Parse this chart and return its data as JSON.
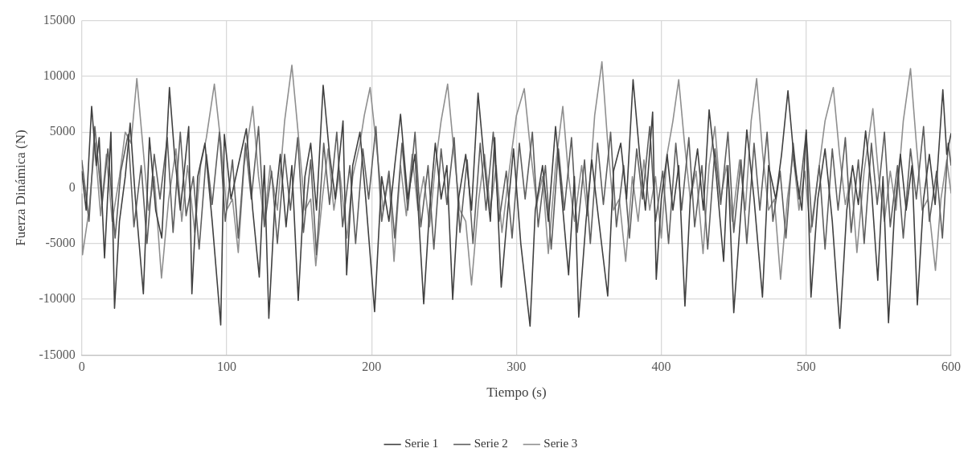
{
  "chart_data": {
    "type": "line",
    "xlabel": "Tiempo (s)",
    "ylabel": "Fuerza Dinámica (N)",
    "xlim": [
      0,
      600
    ],
    "xticks": [
      0,
      100,
      200,
      300,
      400,
      500,
      600
    ],
    "ylim": [
      -15000,
      15000
    ],
    "yticks": [
      -15000,
      -10000,
      -5000,
      0,
      5000,
      10000,
      15000
    ],
    "grid": true,
    "legend": "bottom",
    "marker": "none",
    "line_style": "solid",
    "series": [
      {
        "name": "Serie 1",
        "color": "#404040",
        "x": [
          0,
          3,
          6.8,
          10,
          12,
          15.7,
          20.1,
          22.6,
          26,
          30,
          33.4,
          37,
          42.5,
          46.7,
          51,
          55.2,
          60.5,
          64,
          68,
          73.8,
          76,
          80,
          85,
          90,
          95.9,
          98.4,
          103,
          108,
          113.6,
          118,
          122.5,
          126,
          129.1,
          133,
          137,
          141,
          145,
          149.4,
          154,
          158,
          162,
          166.6,
          171,
          175,
          180.3,
          182.8,
          187,
          192,
          196,
          202.1,
          207,
          212,
          216,
          220,
          225,
          230,
          236,
          240,
          244,
          248,
          252,
          256,
          260,
          265,
          269,
          273.5,
          278,
          282,
          285,
          289.5,
          294,
          298,
          303,
          309.4,
          313,
          318,
          322,
          327,
          336,
          340,
          343,
          348,
          352,
          356,
          363,
          367,
          372,
          376,
          380.5,
          385,
          389,
          394,
          396.5,
          400,
          404,
          408,
          412,
          416.3,
          420,
          425,
          429,
          433,
          438,
          443,
          446,
          450,
          455,
          459,
          464,
          469.8,
          474,
          479,
          483,
          487.4,
          492,
          497,
          500,
          503.3,
          508,
          513,
          518,
          523.2,
          528,
          532,
          536,
          541,
          545,
          549.4,
          553,
          556.8,
          561,
          565,
          569,
          573,
          576.7,
          581,
          585,
          589,
          594.3,
          597,
          600
        ],
        "values": [
          1500,
          -2000,
          7300,
          2000,
          4500,
          -6300,
          5000,
          -10800,
          -3000,
          1000,
          5800,
          -1000,
          -9500,
          4500,
          -2000,
          -4500,
          9000,
          3000,
          -2000,
          5500,
          -9500,
          1000,
          4000,
          -3000,
          -12300,
          4800,
          -1000,
          2000,
          5300,
          -2000,
          -8000,
          2000,
          -11700,
          -2000,
          3000,
          -3500,
          2000,
          -10100,
          1000,
          4000,
          -2000,
          9200,
          3000,
          -1000,
          6000,
          -7800,
          2000,
          5000,
          -1000,
          -11100,
          1000,
          -3000,
          2000,
          6600,
          -1000,
          3000,
          -10400,
          -2000,
          4000,
          -1000,
          2000,
          -10000,
          -1000,
          3000,
          -2000,
          8500,
          2000,
          -3000,
          4500,
          -8900,
          -2000,
          3500,
          -5000,
          -12400,
          -2000,
          2000,
          -3000,
          5500,
          -7800,
          1000,
          -11600,
          -3000,
          2500,
          -2000,
          -9700,
          1500,
          4000,
          -1000,
          9700,
          3000,
          -2000,
          6800,
          -8200,
          -1000,
          3000,
          -2000,
          2000,
          -10600,
          -1000,
          3500,
          -2000,
          7000,
          1000,
          -6600,
          2000,
          -11200,
          -2000,
          5200,
          -1000,
          -9800,
          2000,
          -1000,
          3000,
          8700,
          2000,
          -2000,
          5200,
          -9800,
          -1000,
          3500,
          -3000,
          -12600,
          -2000,
          2000,
          -1500,
          5100,
          0,
          -8300,
          1000,
          -12100,
          -2000,
          3000,
          -2000,
          2000,
          -10500,
          -1000,
          3000,
          -1500,
          8800,
          3000,
          4900
        ]
      },
      {
        "name": "Serie 2",
        "color": "#5f5f5f",
        "x": [
          0,
          5,
          9,
          14,
          18,
          23,
          27,
          32,
          36,
          41,
          45,
          50,
          54,
          59,
          63,
          68,
          72,
          77,
          81,
          86,
          90,
          95,
          99,
          104,
          108,
          113,
          117,
          122,
          126,
          131,
          135,
          140,
          144,
          149,
          153,
          158,
          162,
          167,
          171,
          176,
          180,
          185,
          189,
          194,
          198,
          203,
          207,
          212,
          216,
          221,
          225,
          230,
          234,
          239,
          243,
          248,
          252,
          257,
          261,
          266,
          270,
          275,
          279,
          284,
          288,
          293,
          297,
          302,
          306,
          311,
          315,
          320,
          324,
          329,
          333,
          338,
          342,
          347,
          351,
          356,
          360,
          365,
          369,
          374,
          378,
          383,
          387,
          392,
          396,
          401,
          405,
          410,
          414,
          419,
          423,
          428,
          432,
          437,
          441,
          446,
          450,
          455,
          459,
          464,
          468,
          473,
          477,
          482,
          486,
          491,
          495,
          500,
          504,
          509,
          513,
          518,
          522,
          527,
          531,
          536,
          540,
          545,
          549,
          554,
          558,
          563,
          567,
          572,
          576,
          581,
          585,
          590,
          594,
          598,
          600
        ],
        "values": [
          2500,
          -3000,
          5500,
          -1500,
          3500,
          -4500,
          1500,
          4800,
          -3500,
          2000,
          -5000,
          3000,
          -1000,
          4500,
          -4000,
          5000,
          -2500,
          1000,
          -5500,
          3000,
          -1500,
          5000,
          -3000,
          2500,
          -4500,
          4000,
          -1000,
          5500,
          -3500,
          1500,
          -5000,
          3000,
          -2000,
          4500,
          -4000,
          2500,
          -6000,
          4000,
          -1500,
          5000,
          -3500,
          2000,
          -5000,
          3500,
          -1000,
          5500,
          -3000,
          1500,
          -4500,
          4000,
          -2000,
          5000,
          -3500,
          2000,
          -5500,
          3500,
          -1500,
          4500,
          -4000,
          2500,
          -5000,
          4000,
          -2000,
          5000,
          -3000,
          1500,
          -4500,
          4000,
          -1000,
          5000,
          -3500,
          2000,
          -5500,
          3500,
          -2000,
          4500,
          -4000,
          2500,
          -5000,
          4000,
          -1500,
          5000,
          -3500,
          2000,
          -4500,
          3500,
          -1000,
          5500,
          -3000,
          1500,
          -5000,
          4000,
          -2000,
          4500,
          -3500,
          2000,
          -5500,
          3500,
          -1500,
          5000,
          -4000,
          2500,
          -5000,
          4000,
          -2000,
          5000,
          -3000,
          1500,
          -4500,
          4000,
          -1000,
          5000,
          -3500,
          2000,
          -5500,
          3500,
          -2000,
          4500,
          -4000,
          2500,
          -5000,
          4000,
          -1500,
          5000,
          -3500,
          2000,
          -4500,
          3500,
          -1000,
          5500,
          -3000,
          1500,
          -4500,
          4000,
          2000
        ]
      },
      {
        "name": "Serie 3",
        "color": "#8f8f8f",
        "x": [
          0,
          0.5,
          5,
          9,
          13,
          17,
          21,
          26,
          30,
          34,
          38,
          42,
          46,
          50,
          55,
          60,
          65,
          69,
          73,
          78,
          82,
          86,
          91.5,
          96,
          100,
          104,
          108,
          112,
          118,
          122,
          126,
          130,
          135,
          140,
          145,
          150,
          154,
          158,
          161.5,
          166,
          170,
          174,
          178,
          183,
          187,
          192,
          195,
          199,
          204,
          208,
          212,
          215.5,
          220,
          224,
          228,
          232,
          236,
          240,
          244,
          248,
          252.5,
          257,
          261,
          265,
          269,
          274,
          278,
          282,
          286,
          290,
          295,
          300,
          305.4,
          310,
          314,
          318,
          322,
          327,
          332,
          336,
          340,
          345,
          349,
          354,
          359,
          363,
          367,
          371,
          375.4,
          380,
          384,
          388,
          392,
          396,
          400,
          404,
          408,
          412,
          416,
          420,
          424,
          428.8,
          433,
          437,
          441,
          445,
          449,
          454,
          458,
          462,
          465.8,
          470,
          474,
          478,
          482.3,
          487,
          491,
          495,
          499,
          503,
          508,
          513,
          518.7,
          523,
          527,
          531,
          535,
          540,
          546,
          550,
          554,
          558,
          562,
          567,
          572,
          576,
          580,
          584,
          589.2,
          593,
          597,
          600
        ],
        "values": [
          -500,
          -6000,
          -2000,
          4000,
          -2500,
          3000,
          -3000,
          1000,
          5000,
          4000,
          9800,
          4000,
          -2000,
          1000,
          -8100,
          -1000,
          3500,
          -3000,
          2000,
          -4000,
          2000,
          4500,
          9300,
          4000,
          -2000,
          -1000,
          -5800,
          2000,
          7300,
          1000,
          -3000,
          2000,
          -2000,
          6000,
          11000,
          4000,
          -2000,
          -1000,
          -7000,
          -1000,
          3500,
          -2000,
          1500,
          -4500,
          1000,
          4000,
          6500,
          9000,
          3000,
          -2000,
          1000,
          -6600,
          2000,
          -2500,
          3000,
          -2000,
          1000,
          -3500,
          2000,
          6000,
          9300,
          3000,
          -2000,
          -3000,
          -8700,
          -1000,
          3000,
          -2000,
          2000,
          -4000,
          1500,
          6500,
          8900,
          3000,
          -1500,
          1000,
          -5900,
          2000,
          7300,
          1000,
          -3000,
          2000,
          -2500,
          6500,
          11300,
          4000,
          -2000,
          -1000,
          -6600,
          1000,
          -3000,
          2500,
          -2000,
          1000,
          -4500,
          3000,
          6000,
          9700,
          4000,
          -1000,
          1500,
          -5900,
          2000,
          5500,
          -1000,
          2000,
          -3000,
          2500,
          -2000,
          6000,
          9800,
          3000,
          -2000,
          -1000,
          -8200,
          -1000,
          3000,
          -2000,
          1500,
          -4000,
          1000,
          6000,
          9000,
          3000,
          -1500,
          1000,
          -5800,
          1500,
          7100,
          1000,
          -3000,
          1500,
          -2000,
          6000,
          10700,
          4000,
          -2000,
          -1000,
          -7400,
          -1000,
          2500,
          -500
        ]
      }
    ]
  }
}
